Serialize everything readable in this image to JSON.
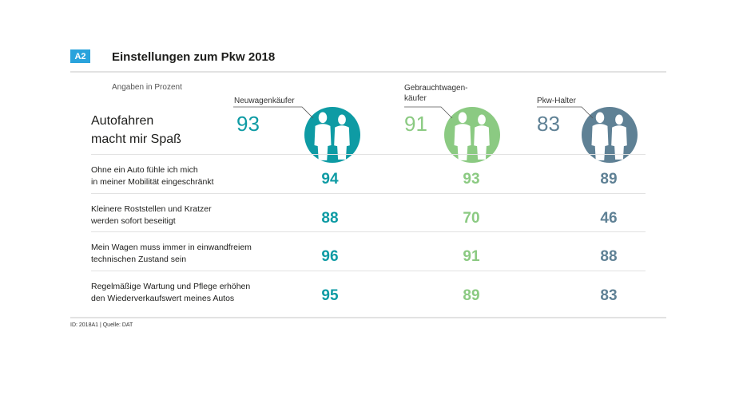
{
  "header": {
    "tag": "A2",
    "title": "Einstellungen zum Pkw 2018",
    "subtitle": "Angaben in Prozent"
  },
  "columns": [
    {
      "label": "Neuwagenkäufer",
      "color": "#0e9ba4"
    },
    {
      "label": "Gebrauchtwagen-\nkäufer",
      "color": "#8bca82"
    },
    {
      "label": "Pkw-Halter",
      "color": "#5f8195"
    }
  ],
  "footer": "ID: 2018A1 | Quelle: DAT",
  "chart_data": {
    "type": "table",
    "title": "Einstellungen zum Pkw 2018",
    "unit": "Angaben in Prozent",
    "series_names": [
      "Neuwagenkäufer",
      "Gebrauchtwagenkäufer",
      "Pkw-Halter"
    ],
    "rows": [
      {
        "label": "Autofahren\nmacht mir Spaß",
        "values": [
          93,
          91,
          83
        ]
      },
      {
        "label": "Ohne ein Auto fühle ich mich\nin meiner Mobilität eingeschränkt",
        "values": [
          94,
          93,
          89
        ]
      },
      {
        "label": "Kleinere Roststellen und Kratzer\nwerden sofort beseitigt",
        "values": [
          88,
          70,
          46
        ]
      },
      {
        "label": "Mein Wagen muss immer in einwandfreiem\ntechnischen Zustand sein",
        "values": [
          96,
          91,
          88
        ]
      },
      {
        "label": "Regelmäßige Wartung und Pflege erhöhen\nden Wiederverkaufswert meines Autos",
        "values": [
          95,
          89,
          83
        ]
      }
    ]
  }
}
